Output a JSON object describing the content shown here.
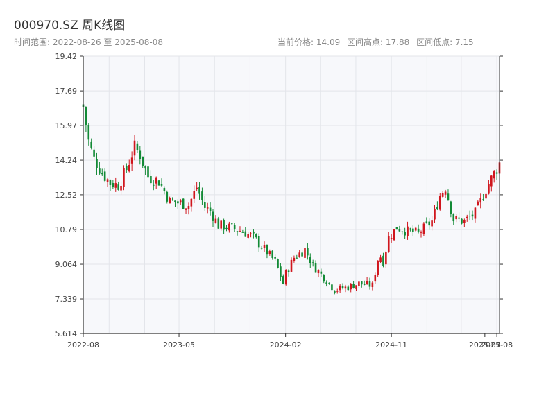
{
  "header": {
    "title": "000970.SZ 周K线图",
    "range_text": "时间范围: 2022-08-26 至 2025-08-08",
    "stats": {
      "current": "当前价格: 14.09",
      "high": "区间高点: 17.88",
      "low": "区间低点: 7.15"
    }
  },
  "colors": {
    "up": "#d0161d",
    "down": "#138a36",
    "plot_bg": "#f7f8fb",
    "grid": "#e3e5ea",
    "axis": "#333333"
  },
  "chart_data": {
    "type": "candlestick",
    "title": "000970.SZ 周K线图",
    "x_start": "2022-08-26",
    "x_end": "2025-08-08",
    "ylim": [
      5.614,
      19.42
    ],
    "yticks": [
      "19.42",
      "17.69",
      "15.97",
      "14.24",
      "12.52",
      "10.79",
      "9.064",
      "7.339",
      "5.614"
    ],
    "xticks": [
      "2022-08",
      "2023-05",
      "2024-02",
      "2024-11",
      "2025-07",
      "2025-08"
    ],
    "grid": true,
    "current_price": 14.09,
    "range_high": 17.88,
    "range_low": 7.15,
    "anchors": [
      [
        "2022-08-26",
        16.9
      ],
      [
        "2022-09-09",
        15.2
      ],
      [
        "2022-09-23",
        14.3
      ],
      [
        "2022-10-14",
        13.6
      ],
      [
        "2022-11-04",
        13.1
      ],
      [
        "2022-11-25",
        13.0
      ],
      [
        "2022-12-16",
        13.8
      ],
      [
        "2023-01-06",
        14.9
      ],
      [
        "2023-01-20",
        14.5
      ],
      [
        "2023-02-10",
        13.4
      ],
      [
        "2023-03-10",
        13.2
      ],
      [
        "2023-04-07",
        12.2
      ],
      [
        "2023-05-05",
        12.1
      ],
      [
        "2023-05-26",
        12.0
      ],
      [
        "2023-06-16",
        12.9
      ],
      [
        "2023-07-07",
        11.9
      ],
      [
        "2023-07-21",
        11.7
      ],
      [
        "2023-08-11",
        11.0
      ],
      [
        "2023-09-08",
        10.9
      ],
      [
        "2023-10-13",
        10.7
      ],
      [
        "2023-11-10",
        10.4
      ],
      [
        "2023-12-08",
        9.8
      ],
      [
        "2024-01-05",
        9.2
      ],
      [
        "2024-01-26",
        8.1
      ],
      [
        "2024-02-02",
        8.6
      ],
      [
        "2024-02-23",
        9.4
      ],
      [
        "2024-03-22",
        9.8
      ],
      [
        "2024-04-12",
        9.0
      ],
      [
        "2024-05-10",
        8.4
      ],
      [
        "2024-06-07",
        7.8
      ],
      [
        "2024-07-05",
        7.9
      ],
      [
        "2024-08-09",
        8.1
      ],
      [
        "2024-09-13",
        8.0
      ],
      [
        "2024-09-30",
        9.6
      ],
      [
        "2024-10-11",
        9.2
      ],
      [
        "2024-10-25",
        10.4
      ],
      [
        "2024-11-15",
        10.9
      ],
      [
        "2024-12-13",
        10.7
      ],
      [
        "2025-01-10",
        10.6
      ],
      [
        "2025-02-14",
        11.2
      ],
      [
        "2025-03-07",
        12.5
      ],
      [
        "2025-03-21",
        12.9
      ],
      [
        "2025-04-11",
        11.3
      ],
      [
        "2025-05-09",
        11.2
      ],
      [
        "2025-06-06",
        11.6
      ],
      [
        "2025-07-04",
        12.8
      ],
      [
        "2025-08-08",
        14.09
      ]
    ]
  }
}
